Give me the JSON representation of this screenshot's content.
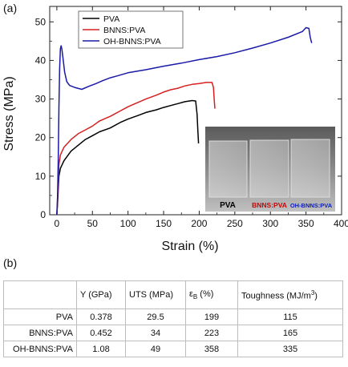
{
  "panel_labels": {
    "a": "(a)",
    "b": "(b)"
  },
  "inset_photo": {
    "labels": [
      {
        "text": "PVA",
        "color": "#000000"
      },
      {
        "text": "BNNS:PVA",
        "color": "#d00000"
      },
      {
        "text": "OH-BNNS:PVA",
        "color": "#1020c0"
      }
    ]
  },
  "table": {
    "headers": [
      "",
      "Y (GPa)",
      "UTS (MPa)",
      "ε",
      "B",
      " (%)",
      "Toughness (MJ/m",
      "3",
      ")"
    ],
    "rows": [
      {
        "name": "PVA",
        "y": "0.378",
        "uts": "29.5",
        "eps": "199",
        "tough": "115"
      },
      {
        "name": "BNNS:PVA",
        "y": "0.452",
        "uts": "34",
        "eps": "223",
        "tough": "165"
      },
      {
        "name": "OH-BNNS:PVA",
        "y": "1.08",
        "uts": "49",
        "eps": "358",
        "tough": "335"
      }
    ]
  },
  "chart_data": {
    "type": "line",
    "xlabel": "Strain (%)",
    "ylabel": "Stress (MPa)",
    "xlim": [
      -10,
      400
    ],
    "ylim": [
      0,
      54
    ],
    "xticks": [
      0,
      50,
      100,
      150,
      200,
      250,
      300,
      350,
      400
    ],
    "yticks": [
      0,
      10,
      20,
      30,
      40,
      50
    ],
    "legend_position": "top-left",
    "series": [
      {
        "name": "PVA",
        "color": "#000000",
        "points": [
          [
            0,
            0
          ],
          [
            1,
            3
          ],
          [
            2,
            7
          ],
          [
            3,
            10
          ],
          [
            5,
            12
          ],
          [
            10,
            14
          ],
          [
            20,
            16.5
          ],
          [
            30,
            18
          ],
          [
            40,
            19.5
          ],
          [
            50,
            20.5
          ],
          [
            60,
            21.5
          ],
          [
            75,
            22.5
          ],
          [
            90,
            24
          ],
          [
            100,
            24.8
          ],
          [
            115,
            25.8
          ],
          [
            125,
            26.5
          ],
          [
            140,
            27.2
          ],
          [
            150,
            27.8
          ],
          [
            160,
            28.3
          ],
          [
            170,
            28.8
          ],
          [
            180,
            29.3
          ],
          [
            190,
            29.6
          ],
          [
            195,
            29.5
          ],
          [
            197,
            26
          ],
          [
            198,
            22
          ],
          [
            199,
            18.5
          ]
        ]
      },
      {
        "name": "BNNS:PVA",
        "color": "#d62020",
        "points": [
          [
            0,
            0
          ],
          [
            1,
            4
          ],
          [
            2,
            9
          ],
          [
            3,
            13
          ],
          [
            5,
            15.5
          ],
          [
            10,
            17.5
          ],
          [
            20,
            19.5
          ],
          [
            30,
            21
          ],
          [
            40,
            22
          ],
          [
            50,
            23
          ],
          [
            60,
            24.3
          ],
          [
            75,
            25.5
          ],
          [
            90,
            27
          ],
          [
            100,
            28
          ],
          [
            115,
            29.2
          ],
          [
            125,
            30
          ],
          [
            140,
            31
          ],
          [
            150,
            31.8
          ],
          [
            160,
            32.4
          ],
          [
            170,
            32.8
          ],
          [
            180,
            33.4
          ],
          [
            190,
            33.8
          ],
          [
            200,
            34
          ],
          [
            210,
            34.3
          ],
          [
            218,
            34.3
          ],
          [
            220,
            33
          ],
          [
            221,
            30
          ],
          [
            222,
            27.5
          ]
        ]
      },
      {
        "name": "OH-BNNS:PVA",
        "color": "#1a1aa8",
        "points": [
          [
            0,
            0
          ],
          [
            1,
            5
          ],
          [
            2,
            15
          ],
          [
            3,
            28
          ],
          [
            4,
            38
          ],
          [
            5,
            43
          ],
          [
            6,
            43.8
          ],
          [
            7,
            43
          ],
          [
            9,
            40
          ],
          [
            11,
            37
          ],
          [
            14,
            34.5
          ],
          [
            18,
            33.5
          ],
          [
            25,
            33
          ],
          [
            35,
            32.5
          ],
          [
            45,
            33.3
          ],
          [
            55,
            34
          ],
          [
            65,
            34.8
          ],
          [
            75,
            35.5
          ],
          [
            85,
            36
          ],
          [
            100,
            36.8
          ],
          [
            125,
            37.6
          ],
          [
            150,
            38.5
          ],
          [
            175,
            39.3
          ],
          [
            200,
            40.2
          ],
          [
            225,
            41
          ],
          [
            250,
            42
          ],
          [
            275,
            43.2
          ],
          [
            300,
            44.5
          ],
          [
            325,
            46
          ],
          [
            345,
            47.5
          ],
          [
            350,
            48.5
          ],
          [
            354,
            48.3
          ],
          [
            356,
            46
          ],
          [
            358,
            44.5
          ]
        ]
      }
    ]
  }
}
